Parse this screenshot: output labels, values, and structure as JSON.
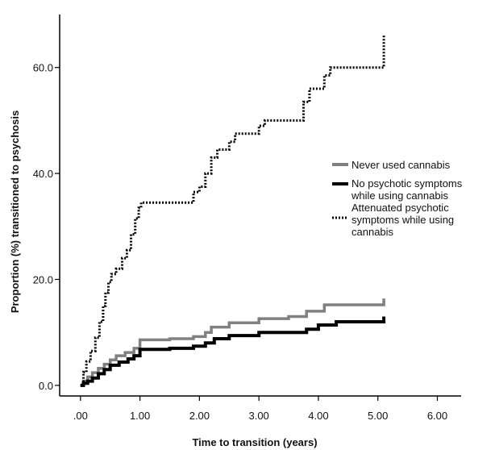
{
  "chart_data": {
    "type": "line",
    "subtype": "kaplan-meier step",
    "title": "",
    "xlabel": "Time to transition (years)",
    "ylabel": "Proportion (%) transitioned to psychosis",
    "xlim": [
      -0.35,
      6.4
    ],
    "ylim": [
      -2,
      70
    ],
    "x_ticks": [
      ".00",
      "1.00",
      "2.00",
      "3.00",
      "4.00",
      "5.00",
      "6.00"
    ],
    "y_ticks": [
      "0.0",
      "20.0",
      "40.0",
      "60.0"
    ],
    "legend_position": "right",
    "series": [
      {
        "name": "Never used cannabis",
        "color": "#808080",
        "style": "solid",
        "x": [
          0.05,
          0.12,
          0.2,
          0.3,
          0.4,
          0.5,
          0.6,
          0.75,
          0.9,
          1.0,
          1.5,
          1.9,
          2.1,
          2.2,
          2.5,
          3.0,
          3.5,
          3.8,
          4.1,
          5.1
        ],
        "y": [
          0.8,
          1.6,
          2.4,
          3.2,
          4.0,
          4.8,
          5.6,
          6.2,
          7.0,
          8.6,
          8.8,
          9.2,
          10.0,
          11.0,
          11.8,
          12.6,
          13.0,
          14.0,
          15.2,
          16.4
        ]
      },
      {
        "name": "No psychotic symptoms while using cannabis",
        "color": "#000000",
        "style": "solid",
        "x": [
          0.05,
          0.12,
          0.2,
          0.3,
          0.4,
          0.5,
          0.65,
          0.8,
          0.9,
          1.0,
          1.5,
          1.9,
          2.1,
          2.25,
          2.5,
          3.0,
          3.8,
          4.0,
          4.3,
          5.1
        ],
        "y": [
          0.4,
          0.8,
          1.4,
          2.2,
          3.0,
          3.8,
          4.4,
          5.0,
          5.6,
          6.8,
          7.0,
          7.4,
          8.0,
          8.8,
          9.4,
          10.0,
          10.6,
          11.4,
          12.0,
          13.0
        ]
      },
      {
        "name": "Attenuated psychotic symptoms while using cannabis",
        "color": "#000000",
        "style": "dotted",
        "x": [
          0.05,
          0.1,
          0.17,
          0.25,
          0.32,
          0.38,
          0.42,
          0.47,
          0.52,
          0.6,
          0.7,
          0.78,
          0.85,
          0.92,
          0.98,
          1.02,
          1.9,
          2.0,
          2.1,
          2.2,
          2.3,
          2.5,
          2.6,
          3.0,
          3.1,
          3.75,
          3.85,
          4.1,
          4.2,
          4.9,
          5.1
        ],
        "y": [
          2.5,
          4.5,
          6.5,
          9.0,
          12.0,
          15.0,
          17.5,
          19.5,
          21.0,
          22.0,
          24.0,
          25.5,
          28.5,
          31.5,
          33.5,
          34.5,
          36.5,
          37.5,
          40.0,
          43.0,
          44.5,
          46.0,
          47.5,
          49.0,
          50.0,
          53.5,
          56.0,
          58.5,
          60.0,
          60.0,
          66.0
        ]
      }
    ],
    "annotations": [],
    "grid": false
  }
}
